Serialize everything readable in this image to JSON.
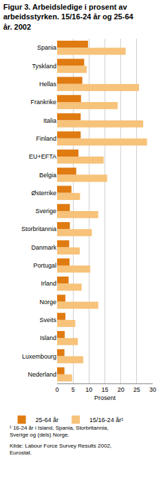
{
  "chart_data": {
    "type": "bar",
    "orientation": "horizontal",
    "title": "Figur 3. Arbeidsledige i prosent av arbeidsstyrken. 15/16-24 år og 25-64 år. 2002",
    "categories": [
      "Spania",
      "Tyskland",
      "Hellas",
      "Frankrike",
      "Italia",
      "Finland",
      "EU+EFTA",
      "Belgia",
      "Østerrike",
      "Sverige",
      "Storbritannia",
      "Danmark",
      "Portugal",
      "Irland",
      "Norge",
      "Sveits",
      "Island",
      "Luxembourg",
      "Nederland"
    ],
    "series": [
      {
        "name": "25-64 år",
        "color": "#e07b12",
        "values": [
          9.7,
          8.5,
          7.9,
          7.5,
          7.4,
          7.4,
          6.7,
          6.0,
          4.5,
          4.0,
          4.0,
          3.8,
          3.9,
          3.6,
          2.6,
          2.6,
          2.4,
          2.3,
          2.3
        ]
      },
      {
        "name": "15/16-24 år¹",
        "color": "#f7c27a",
        "values": [
          21.5,
          9.3,
          25.7,
          19.0,
          27.0,
          28.2,
          14.6,
          15.7,
          7.2,
          12.9,
          10.9,
          7.1,
          10.4,
          7.7,
          12.9,
          5.7,
          6.5,
          8.2,
          4.7
        ]
      }
    ],
    "xlabel": "Prosent",
    "xlim": [
      0,
      30
    ],
    "xticks": [
      0,
      5,
      10,
      15,
      20,
      25,
      30
    ],
    "grid": true,
    "legend": "bottom",
    "annotations": [
      "¹ 16-24 år i Island, Spania, Storbritannia, Sverige og (dels) Norge.",
      "Kilde: Labour Force Survey Results 2002, Eurostat."
    ]
  }
}
